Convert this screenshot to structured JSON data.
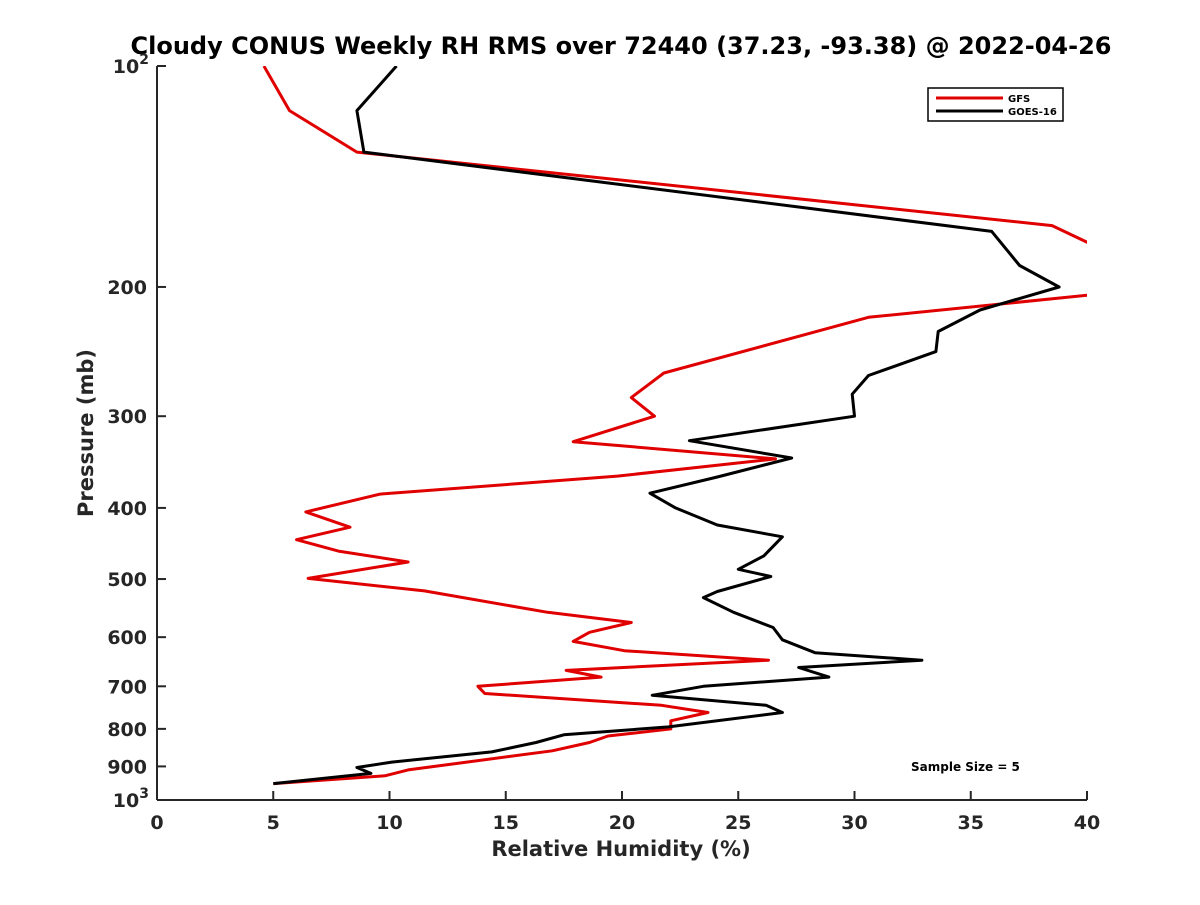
{
  "chart_data": {
    "type": "line",
    "title": "Cloudy CONUS Weekly RH RMS over 72440 (37.23, -93.38) @ 2022-04-26",
    "xlabel": "Relative Humidity (%)",
    "ylabel": "Pressure (mb)",
    "xlim": [
      0,
      40
    ],
    "ylim": [
      100,
      1000
    ],
    "y_scale": "log",
    "y_reversed": true,
    "grid": false,
    "legend_position": "top-right",
    "x_ticks": [
      {
        "value": 0,
        "label": "0"
      },
      {
        "value": 5,
        "label": "5"
      },
      {
        "value": 10,
        "label": "10"
      },
      {
        "value": 15,
        "label": "15"
      },
      {
        "value": 20,
        "label": "20"
      },
      {
        "value": 25,
        "label": "25"
      },
      {
        "value": 30,
        "label": "30"
      },
      {
        "value": 35,
        "label": "35"
      },
      {
        "value": 40,
        "label": "40"
      }
    ],
    "y_ticks": [
      {
        "value": 100,
        "base": "10",
        "exp": "2"
      },
      {
        "value": 200,
        "label": "200"
      },
      {
        "value": 300,
        "label": "300"
      },
      {
        "value": 400,
        "label": "400"
      },
      {
        "value": 500,
        "label": "500"
      },
      {
        "value": 600,
        "label": "600"
      },
      {
        "value": 700,
        "label": "700"
      },
      {
        "value": 800,
        "label": "800"
      },
      {
        "value": 900,
        "label": "900"
      },
      {
        "value": 1000,
        "base": "10",
        "exp": "3"
      }
    ],
    "annotation": "Sample Size = 5",
    "series": [
      {
        "name": "GFS",
        "color": "#e00000",
        "points": [
          [
            4.6,
            100
          ],
          [
            5.7,
            115
          ],
          [
            8.6,
            131
          ],
          [
            38.5,
            165
          ],
          [
            40.2,
            175
          ],
          [
            40.2,
            205
          ],
          [
            30.6,
            220
          ],
          [
            21.8,
            262
          ],
          [
            20.4,
            283
          ],
          [
            21.4,
            300
          ],
          [
            17.9,
            325
          ],
          [
            26.6,
            343
          ],
          [
            19.8,
            362
          ],
          [
            9.6,
            383
          ],
          [
            6.4,
            405
          ],
          [
            8.3,
            425
          ],
          [
            6.0,
            442
          ],
          [
            7.8,
            458
          ],
          [
            10.8,
            474
          ],
          [
            6.5,
            499
          ],
          [
            11.5,
            519
          ],
          [
            16.8,
            555
          ],
          [
            20.4,
            573
          ],
          [
            18.6,
            591
          ],
          [
            17.9,
            608
          ],
          [
            20.1,
            626
          ],
          [
            26.3,
            645
          ],
          [
            17.6,
            666
          ],
          [
            19.1,
            680
          ],
          [
            13.8,
            700
          ],
          [
            14.1,
            716
          ],
          [
            21.7,
            743
          ],
          [
            23.7,
            760
          ],
          [
            22.1,
            780
          ],
          [
            22.1,
            800
          ],
          [
            19.4,
            818
          ],
          [
            18.6,
            835
          ],
          [
            17.0,
            857
          ],
          [
            10.8,
            910
          ],
          [
            9.8,
            927
          ],
          [
            5.0,
            950
          ]
        ]
      },
      {
        "name": "GOES-16",
        "color": "#000000",
        "points": [
          [
            10.3,
            100
          ],
          [
            8.6,
            115
          ],
          [
            8.9,
            131
          ],
          [
            35.9,
            168
          ],
          [
            37.1,
            187
          ],
          [
            38.8,
            200
          ],
          [
            35.4,
            215
          ],
          [
            33.6,
            230
          ],
          [
            33.5,
            245
          ],
          [
            30.6,
            264
          ],
          [
            29.9,
            280
          ],
          [
            30.0,
            300
          ],
          [
            22.9,
            324
          ],
          [
            27.3,
            342
          ],
          [
            24.1,
            363
          ],
          [
            21.2,
            382
          ],
          [
            22.3,
            400
          ],
          [
            24.1,
            422
          ],
          [
            26.9,
            438
          ],
          [
            26.1,
            465
          ],
          [
            25.0,
            485
          ],
          [
            26.4,
            496
          ],
          [
            24.1,
            520
          ],
          [
            23.5,
            530
          ],
          [
            24.8,
            555
          ],
          [
            26.5,
            582
          ],
          [
            26.9,
            605
          ],
          [
            28.3,
            630
          ],
          [
            32.9,
            645
          ],
          [
            27.6,
            660
          ],
          [
            28.9,
            680
          ],
          [
            23.5,
            700
          ],
          [
            21.3,
            720
          ],
          [
            26.2,
            743
          ],
          [
            26.9,
            760
          ],
          [
            22.0,
            795
          ],
          [
            17.5,
            815
          ],
          [
            16.3,
            835
          ],
          [
            14.4,
            860
          ],
          [
            10.1,
            888
          ],
          [
            8.6,
            903
          ],
          [
            9.2,
            920
          ],
          [
            5.0,
            950
          ]
        ]
      }
    ]
  }
}
